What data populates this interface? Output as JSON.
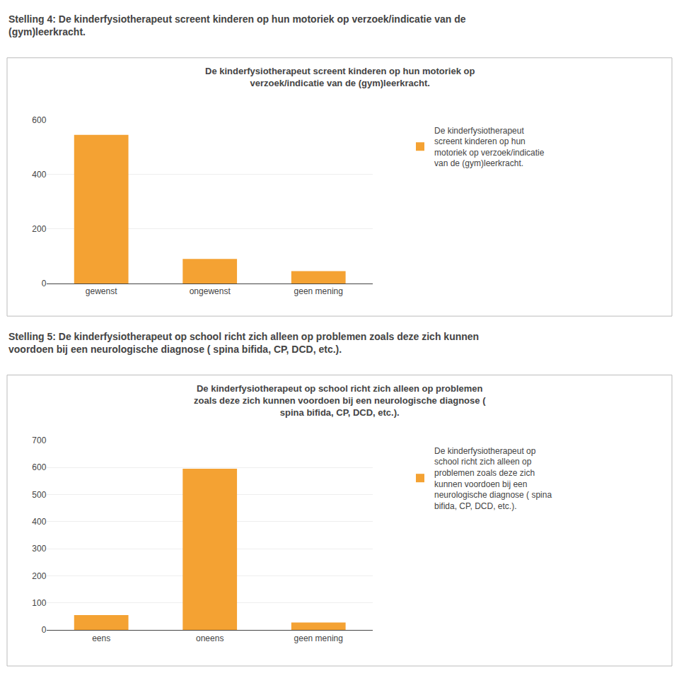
{
  "chart_data": [
    {
      "type": "bar",
      "title": "Stelling 4: De kinderfysiotherapeut screent kinderen op hun motoriek op verzoek/indicatie van de\n(gym)leerkracht.",
      "subtitle": "De kinderfysiotherapeut screent kinderen op hun motoriek op\nverzoek/indicatie van de (gym)leerkracht.",
      "categories": [
        "gewenst",
        "ongewenst",
        "geen mening"
      ],
      "series": [
        {
          "name": "De kinderfysiotherapeut\nscreent kinderen op hun\nmotoriek op verzoek/indicatie\nvan de (gym)leerkracht.",
          "color": "#F4A233",
          "values": [
            545,
            90,
            45
          ]
        }
      ],
      "ylim": [
        0,
        600
      ],
      "yticks": [
        0,
        200,
        400,
        600
      ],
      "grid": true,
      "legend": "right"
    },
    {
      "type": "bar",
      "title": "Stelling 5: De kinderfysiotherapeut op school richt zich alleen op problemen zoals deze zich kunnen\nvoordoen bij een neurologische diagnose ( spina bifida, CP, DCD, etc.).",
      "subtitle": "De kinderfysiotherapeut op school richt zich alleen op problemen\nzoals deze zich kunnen voordoen bij een neurologische diagnose (\nspina bifida, CP, DCD, etc.).",
      "categories": [
        "eens",
        "oneens",
        "geen mening"
      ],
      "series": [
        {
          "name": "De kinderfysiotherapeut op\nschool richt zich alleen op\nproblemen zoals deze zich\nkunnen voordoen bij een\nneurologische diagnose ( spina\nbifida, CP, DCD, etc.).",
          "color": "#F4A233",
          "values": [
            55,
            595,
            28
          ]
        }
      ],
      "ylim": [
        0,
        700
      ],
      "yticks": [
        0,
        100,
        200,
        300,
        400,
        500,
        600,
        700
      ],
      "grid": true,
      "legend": "right"
    }
  ]
}
